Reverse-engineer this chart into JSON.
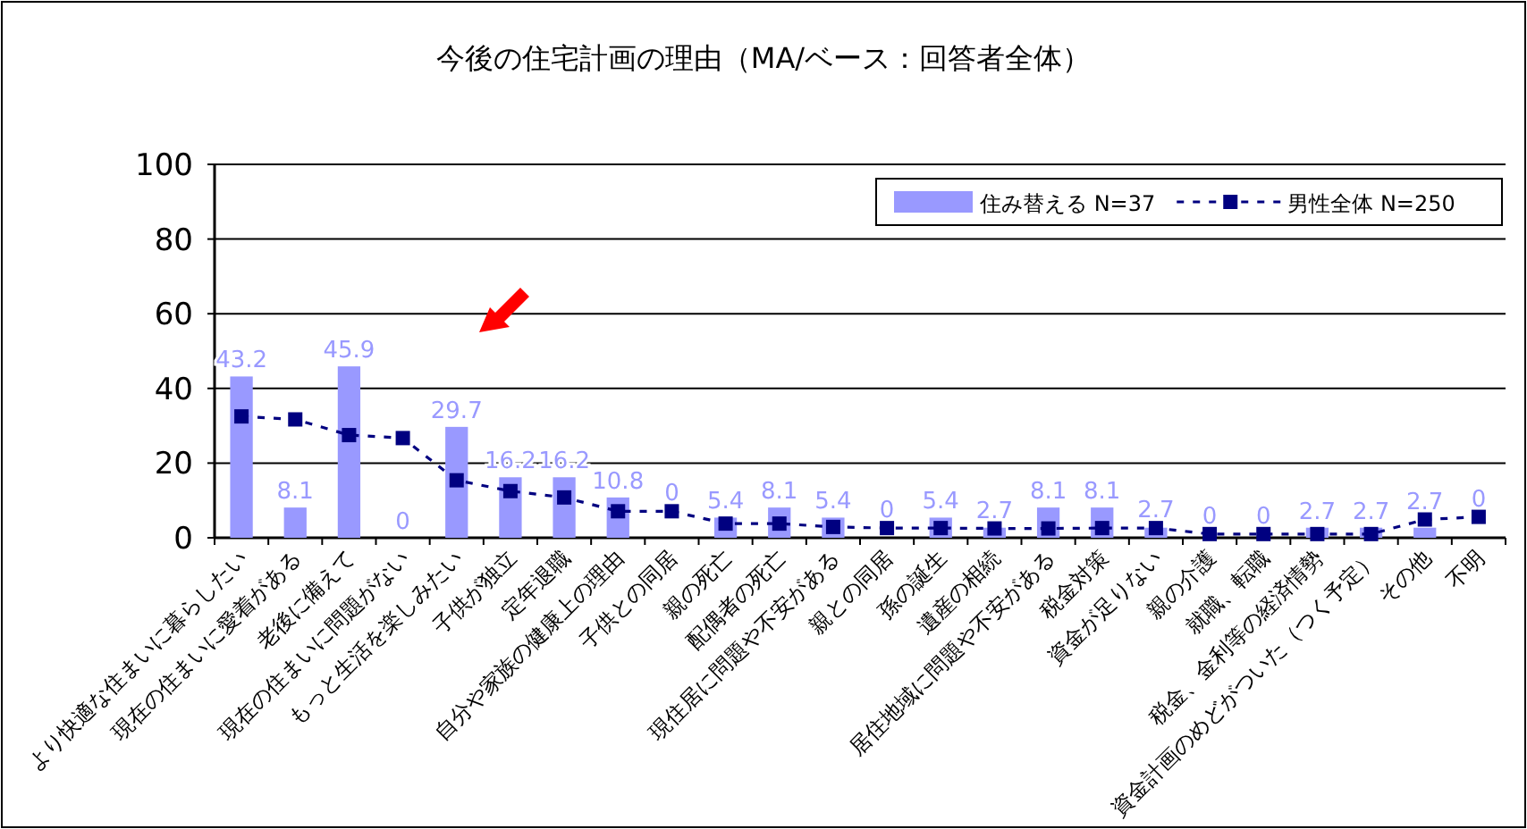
{
  "chart_data": {
    "type": "bar",
    "title": "今後の住宅計画の理由（MA/ベース：回答者全体）",
    "categories": [
      "より快適な住まいに暮らしたい",
      "現在の住まいに愛着がある",
      "老後に備えて",
      "現在の住まいに問題がない",
      "もっと生活を楽しみたい",
      "子供が独立",
      "定年退職",
      "自分や家族の健康上の理由",
      "子供との同居",
      "親の死亡",
      "配偶者の死亡",
      "現住居に問題や不安がある",
      "親との同居",
      "孫の誕生",
      "遺産の相続",
      "居住地域に問題や不安がある",
      "税金対策",
      "資金が足りない",
      "親の介護",
      "就職、転職",
      "税金、金利等の経済情勢",
      "資金計画のめどがついた（つく予定）",
      "その他",
      "不明"
    ],
    "series": [
      {
        "name": "住み替える N=37",
        "color": "#9999ff",
        "values": [
          43.2,
          8.1,
          45.9,
          0,
          29.7,
          16.2,
          16.2,
          10.8,
          0,
          5.4,
          8.1,
          5.4,
          0,
          5.4,
          2.7,
          8.1,
          8.1,
          2.7,
          0,
          0,
          2.7,
          2.7,
          2.7,
          0
        ],
        "value_labels": [
          "43.2",
          "8.1",
          "45.9",
          "0",
          "29.7",
          "16.2",
          "16.2",
          "10.8",
          "0",
          "5.4",
          "8.1",
          "5.4",
          "0",
          "5.4",
          "2.7",
          "8.1",
          "8.1",
          "2.7",
          "0",
          "0",
          "2.7",
          "2.7",
          "2.7",
          "0"
        ]
      },
      {
        "name": "男性全体 N=250",
        "type": "line",
        "color": "#000080",
        "marker": "square",
        "line_style": "dashed",
        "values": [
          32.5,
          31.7,
          27.5,
          26.7,
          15.4,
          12.5,
          10.8,
          7.1,
          7.1,
          3.8,
          3.8,
          2.9,
          2.6,
          2.6,
          2.5,
          2.5,
          2.6,
          2.6,
          1.0,
          1.0,
          1.0,
          1.0,
          4.9,
          5.6
        ]
      }
    ],
    "ylim": [
      0,
      100
    ],
    "yticks": [
      0,
      20,
      40,
      60,
      80,
      100
    ],
    "grid": "y",
    "legend": "top right"
  }
}
